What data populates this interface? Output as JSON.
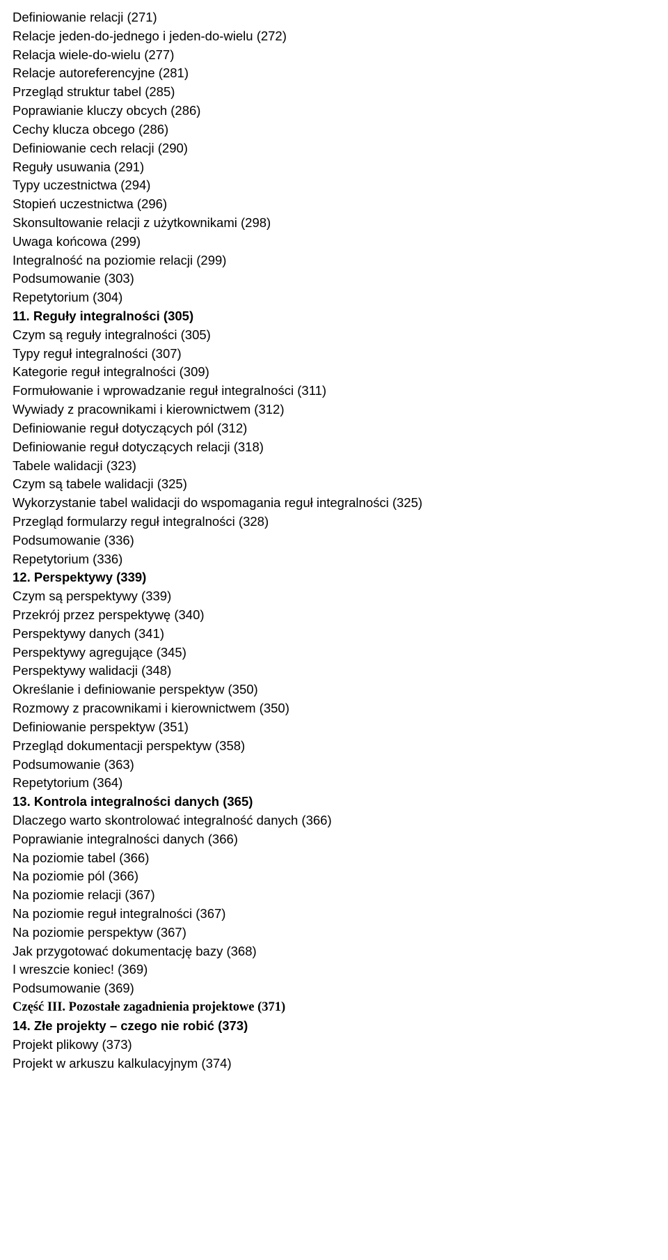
{
  "lines": [
    {
      "text": "Definiowanie relacji (271)",
      "bold": false,
      "serif": false
    },
    {
      "text": "Relacje jeden-do-jednego i jeden-do-wielu (272)",
      "bold": false,
      "serif": false
    },
    {
      "text": "Relacja wiele-do-wielu (277)",
      "bold": false,
      "serif": false
    },
    {
      "text": "Relacje autoreferencyjne (281)",
      "bold": false,
      "serif": false
    },
    {
      "text": "Przegląd struktur tabel (285)",
      "bold": false,
      "serif": false
    },
    {
      "text": "Poprawianie kluczy obcych (286)",
      "bold": false,
      "serif": false
    },
    {
      "text": "Cechy klucza obcego (286)",
      "bold": false,
      "serif": false
    },
    {
      "text": "Definiowanie cech relacji (290)",
      "bold": false,
      "serif": false
    },
    {
      "text": "Reguły usuwania (291)",
      "bold": false,
      "serif": false
    },
    {
      "text": "Typy uczestnictwa (294)",
      "bold": false,
      "serif": false
    },
    {
      "text": "Stopień uczestnictwa (296)",
      "bold": false,
      "serif": false
    },
    {
      "text": "Skonsultowanie relacji z użytkownikami (298)",
      "bold": false,
      "serif": false
    },
    {
      "text": "Uwaga końcowa (299)",
      "bold": false,
      "serif": false
    },
    {
      "text": "Integralność na poziomie relacji (299)",
      "bold": false,
      "serif": false
    },
    {
      "text": "Podsumowanie (303)",
      "bold": false,
      "serif": false
    },
    {
      "text": "Repetytorium (304)",
      "bold": false,
      "serif": false
    },
    {
      "text": "11. Reguły integralności (305)",
      "bold": true,
      "serif": false
    },
    {
      "text": "Czym są reguły integralności (305)",
      "bold": false,
      "serif": false
    },
    {
      "text": "Typy reguł integralności (307)",
      "bold": false,
      "serif": false
    },
    {
      "text": "Kategorie reguł integralności (309)",
      "bold": false,
      "serif": false
    },
    {
      "text": "Formułowanie i wprowadzanie reguł integralności (311)",
      "bold": false,
      "serif": false
    },
    {
      "text": "Wywiady z pracownikami i kierownictwem (312)",
      "bold": false,
      "serif": false
    },
    {
      "text": "Definiowanie reguł dotyczących pól (312)",
      "bold": false,
      "serif": false
    },
    {
      "text": "Definiowanie reguł dotyczących relacji (318)",
      "bold": false,
      "serif": false
    },
    {
      "text": "Tabele walidacji (323)",
      "bold": false,
      "serif": false
    },
    {
      "text": "Czym są tabele walidacji (325)",
      "bold": false,
      "serif": false
    },
    {
      "text": "Wykorzystanie tabel walidacji do wspomagania reguł integralności (325)",
      "bold": false,
      "serif": false
    },
    {
      "text": "Przegląd formularzy reguł integralności (328)",
      "bold": false,
      "serif": false
    },
    {
      "text": "Podsumowanie (336)",
      "bold": false,
      "serif": false
    },
    {
      "text": "Repetytorium (336)",
      "bold": false,
      "serif": false
    },
    {
      "text": "12. Perspektywy (339)",
      "bold": true,
      "serif": false
    },
    {
      "text": "Czym są perspektywy (339)",
      "bold": false,
      "serif": false
    },
    {
      "text": "Przekrój przez perspektywę (340)",
      "bold": false,
      "serif": false
    },
    {
      "text": "Perspektywy danych (341)",
      "bold": false,
      "serif": false
    },
    {
      "text": "Perspektywy agregujące (345)",
      "bold": false,
      "serif": false
    },
    {
      "text": "Perspektywy walidacji (348)",
      "bold": false,
      "serif": false
    },
    {
      "text": "Określanie i definiowanie perspektyw (350)",
      "bold": false,
      "serif": false
    },
    {
      "text": "Rozmowy z pracownikami i kierownictwem (350)",
      "bold": false,
      "serif": false
    },
    {
      "text": "Definiowanie perspektyw (351)",
      "bold": false,
      "serif": false
    },
    {
      "text": "Przegląd dokumentacji perspektyw (358)",
      "bold": false,
      "serif": false
    },
    {
      "text": "Podsumowanie (363)",
      "bold": false,
      "serif": false
    },
    {
      "text": "Repetytorium (364)",
      "bold": false,
      "serif": false
    },
    {
      "text": "13. Kontrola integralności danych (365)",
      "bold": true,
      "serif": false
    },
    {
      "text": "Dlaczego warto skontrolować integralność danych (366)",
      "bold": false,
      "serif": false
    },
    {
      "text": "Poprawianie integralności danych (366)",
      "bold": false,
      "serif": false
    },
    {
      "text": "Na poziomie tabel (366)",
      "bold": false,
      "serif": false
    },
    {
      "text": "Na poziomie pól (366)",
      "bold": false,
      "serif": false
    },
    {
      "text": "Na poziomie relacji (367)",
      "bold": false,
      "serif": false
    },
    {
      "text": "Na poziomie reguł integralności (367)",
      "bold": false,
      "serif": false
    },
    {
      "text": "Na poziomie perspektyw (367)",
      "bold": false,
      "serif": false
    },
    {
      "text": "Jak przygotować dokumentację bazy (368)",
      "bold": false,
      "serif": false
    },
    {
      "text": "I wreszcie koniec! (369)",
      "bold": false,
      "serif": false
    },
    {
      "text": "Podsumowanie (369)",
      "bold": false,
      "serif": false
    },
    {
      "text": "Część III. Pozostałe zagadnienia projektowe (371)",
      "bold": true,
      "serif": true
    },
    {
      "text": "14. Złe projekty – czego nie robić (373)",
      "bold": true,
      "serif": false
    },
    {
      "text": "Projekt plikowy (373)",
      "bold": false,
      "serif": false
    },
    {
      "text": "Projekt w arkuszu kalkulacyjnym (374)",
      "bold": false,
      "serif": false
    }
  ]
}
